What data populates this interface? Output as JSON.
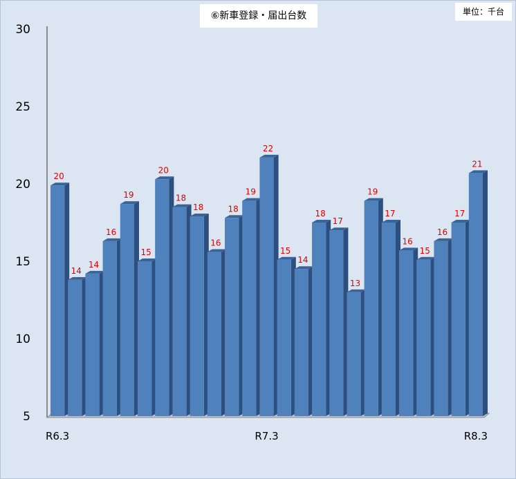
{
  "chart_data": {
    "type": "bar",
    "title": "⑥新車登録・届出台数",
    "unit_label": "単位：千台",
    "ylim": [
      5,
      30
    ],
    "yticks": [
      5,
      10,
      15,
      20,
      25,
      30
    ],
    "x_tick_labels": [
      {
        "index": 0,
        "label": "R6.3"
      },
      {
        "index": 12,
        "label": "R7.3"
      },
      {
        "index": 24,
        "label": "R8.3"
      }
    ],
    "values": [
      19.9,
      13.8,
      14.2,
      16.3,
      18.7,
      15.0,
      20.3,
      18.5,
      17.9,
      15.6,
      17.8,
      18.9,
      21.7,
      15.1,
      14.5,
      17.5,
      17.0,
      13.0,
      18.9,
      17.5,
      15.7,
      15.1,
      16.3,
      17.5,
      20.7
    ],
    "data_labels": [
      "20",
      "14",
      "14",
      "16",
      "19",
      "15",
      "20",
      "18",
      "18",
      "16",
      "18",
      "19",
      "22",
      "15",
      "14",
      "18",
      "17",
      "13",
      "19",
      "17",
      "16",
      "15",
      "16",
      "17",
      "21"
    ],
    "colors": {
      "bar_front": "#4f81bd",
      "bar_side": "#2d4f7f",
      "bar_top": "#3a6498",
      "data_label": "#e00000",
      "background": "#dce6f2"
    },
    "legend": "none",
    "grid": false
  }
}
